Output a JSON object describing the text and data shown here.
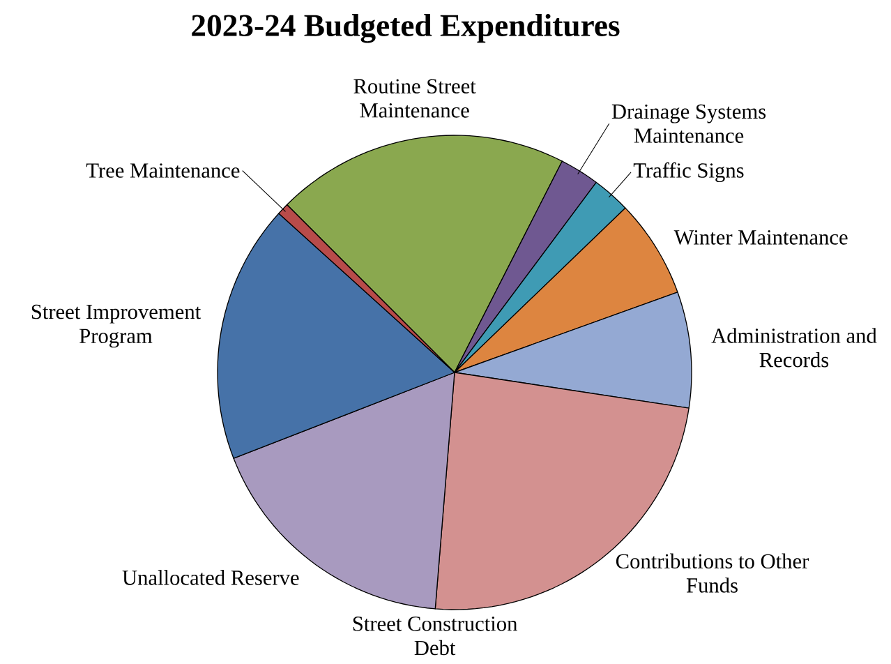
{
  "chart_data": {
    "type": "pie",
    "title": "2023-24 Budgeted Expenditures",
    "categories": [
      "Routine Street Maintenance",
      "Drainage Systems Maintenance",
      "Traffic Signs",
      "Winter Maintenance",
      "Administration and Records",
      "Contributions to Other Funds",
      "Street Construction Debt",
      "Unallocated Reserve",
      "Street Improvement Program",
      "Tree Maintenance"
    ],
    "values": [
      20.0,
      2.7,
      2.6,
      6.7,
      7.9,
      23.9,
      0,
      17.8,
      17.6,
      0.8
    ],
    "colors": [
      "#8aa84f",
      "#6f5891",
      "#3f9bb4",
      "#dd8540",
      "#94a9d3",
      "#d39190",
      "#000000",
      "#a89abf",
      "#4672a8",
      "#b84b4a"
    ]
  }
}
